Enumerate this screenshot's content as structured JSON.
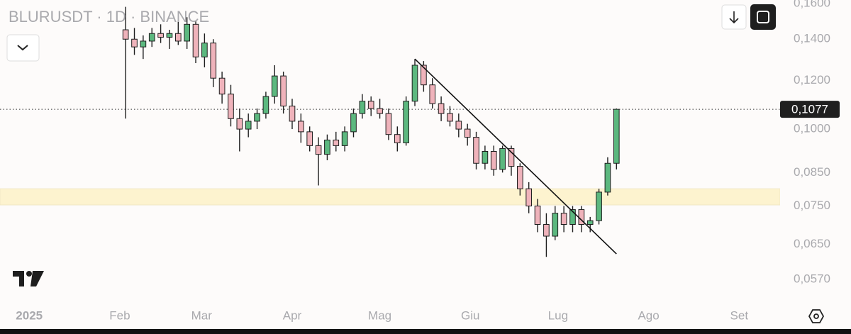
{
  "chart_data": {
    "type": "candlestick",
    "title": "BLURUSDT · 1D · BINANCE",
    "log_scale": true,
    "up_color": "#5cb87f",
    "down_color": "#efb3bb",
    "wick_color": "#1e1e1e",
    "xlim": [
      -10,
      257
    ],
    "ylim": [
      0.0518,
      0.1621
    ],
    "xticks": [
      {
        "value": 0,
        "label": "2025"
      },
      {
        "value": 31,
        "label": "Feb"
      },
      {
        "value": 59,
        "label": "Mar"
      },
      {
        "value": 90,
        "label": "Apr"
      },
      {
        "value": 120,
        "label": "Mag"
      },
      {
        "value": 151,
        "label": "Giu"
      },
      {
        "value": 181,
        "label": "Lug"
      },
      {
        "value": 212,
        "label": "Ago"
      },
      {
        "value": 243,
        "label": "Set"
      }
    ],
    "yticks": [
      {
        "value": 0.16,
        "label": "0,1600"
      },
      {
        "value": 0.14,
        "label": "0,1400"
      },
      {
        "value": 0.12,
        "label": "0,1200"
      },
      {
        "value": 0.1,
        "label": "0,1000"
      },
      {
        "value": 0.085,
        "label": "0,0850"
      },
      {
        "value": 0.075,
        "label": "0,0750"
      },
      {
        "value": 0.065,
        "label": "0,0650"
      },
      {
        "value": 0.057,
        "label": "0,0570"
      }
    ],
    "last_price": {
      "value": 0.1077,
      "label": "0,1077"
    },
    "zone": {
      "from": 0.0753,
      "to": 0.08,
      "color": "#fdf3cf"
    },
    "trendline": {
      "x": [
        132,
        201
      ],
      "y": [
        0.13,
        0.0627
      ]
    },
    "x": [
      33,
      36,
      39,
      42,
      45,
      48,
      51,
      54,
      57,
      60,
      63,
      66,
      69,
      72,
      75,
      78,
      81,
      84,
      87,
      90,
      93,
      96,
      99,
      102,
      105,
      108,
      111,
      114,
      117,
      120,
      123,
      126,
      129,
      132,
      135,
      138,
      141,
      144,
      147,
      150,
      153,
      156,
      159,
      162,
      165,
      168,
      171,
      174,
      177,
      180,
      183,
      186,
      189,
      192,
      195,
      198,
      201
    ],
    "open": [
      0.145,
      0.14,
      0.136,
      0.139,
      0.143,
      0.141,
      0.143,
      0.139,
      0.148,
      0.131,
      0.138,
      0.121,
      0.114,
      0.104,
      0.1,
      0.103,
      0.106,
      0.113,
      0.122,
      0.109,
      0.103,
      0.099,
      0.094,
      0.091,
      0.096,
      0.094,
      0.099,
      0.106,
      0.111,
      0.108,
      0.106,
      0.098,
      0.095,
      0.111,
      0.127,
      0.118,
      0.11,
      0.106,
      0.103,
      0.1,
      0.097,
      0.088,
      0.092,
      0.086,
      0.093,
      0.087,
      0.08,
      0.075,
      0.07,
      0.067,
      0.073,
      0.07,
      0.074,
      0.07,
      0.071,
      0.079,
      0.088
    ],
    "high": [
      0.158,
      0.146,
      0.142,
      0.146,
      0.148,
      0.145,
      0.15,
      0.152,
      0.15,
      0.143,
      0.14,
      0.124,
      0.118,
      0.108,
      0.106,
      0.108,
      0.115,
      0.127,
      0.124,
      0.112,
      0.106,
      0.101,
      0.097,
      0.098,
      0.099,
      0.101,
      0.108,
      0.114,
      0.113,
      0.112,
      0.108,
      0.101,
      0.113,
      0.13,
      0.129,
      0.121,
      0.113,
      0.109,
      0.106,
      0.102,
      0.099,
      0.094,
      0.094,
      0.094,
      0.094,
      0.088,
      0.082,
      0.077,
      0.073,
      0.075,
      0.075,
      0.075,
      0.075,
      0.072,
      0.08,
      0.09,
      0.108
    ],
    "low": [
      0.104,
      0.132,
      0.13,
      0.136,
      0.138,
      0.135,
      0.137,
      0.135,
      0.128,
      0.126,
      0.117,
      0.11,
      0.101,
      0.092,
      0.097,
      0.1,
      0.104,
      0.11,
      0.106,
      0.1,
      0.095,
      0.092,
      0.081,
      0.089,
      0.092,
      0.092,
      0.097,
      0.104,
      0.105,
      0.104,
      0.096,
      0.092,
      0.094,
      0.109,
      0.115,
      0.108,
      0.103,
      0.101,
      0.097,
      0.094,
      0.086,
      0.086,
      0.084,
      0.085,
      0.084,
      0.078,
      0.073,
      0.068,
      0.062,
      0.066,
      0.068,
      0.068,
      0.068,
      0.068,
      0.07,
      0.078,
      0.086
    ],
    "close": [
      0.14,
      0.136,
      0.139,
      0.143,
      0.141,
      0.143,
      0.139,
      0.148,
      0.131,
      0.138,
      0.121,
      0.114,
      0.104,
      0.1,
      0.103,
      0.106,
      0.113,
      0.122,
      0.109,
      0.103,
      0.099,
      0.094,
      0.091,
      0.096,
      0.094,
      0.099,
      0.106,
      0.111,
      0.108,
      0.106,
      0.098,
      0.095,
      0.111,
      0.127,
      0.118,
      0.11,
      0.106,
      0.103,
      0.1,
      0.097,
      0.088,
      0.092,
      0.086,
      0.093,
      0.087,
      0.08,
      0.075,
      0.07,
      0.067,
      0.073,
      0.07,
      0.074,
      0.07,
      0.071,
      0.079,
      0.088,
      0.1077
    ]
  }
}
